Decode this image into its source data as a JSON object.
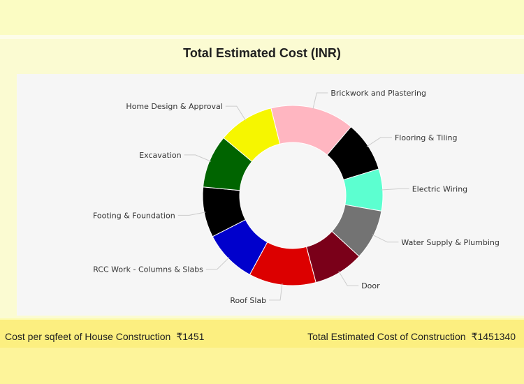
{
  "chart_data": {
    "type": "pie",
    "title": "Total Estimated Cost (INR)",
    "categories": [
      "Brickwork and Plastering",
      "Flooring & Tiling",
      "Electric Wiring",
      "Water Supply & Plumbing",
      "Door",
      "Roof Slab",
      "RCC Work - Columns & Slabs",
      "Footing & Foundation",
      "Excavation",
      "Home Design & Approval"
    ],
    "values": [
      15,
      9,
      7.5,
      9,
      9,
      12,
      9.5,
      9,
      9.5,
      10
    ],
    "colors": [
      "#ffb6c1",
      "#000000",
      "#5cffd0",
      "#737373",
      "#7a0019",
      "#dc0000",
      "#0000cc",
      "#000000",
      "#006400",
      "#f6f600"
    ]
  },
  "footer": {
    "cost_per_sqft_label": "Cost per sqfeet of House Construction",
    "cost_per_sqft_value": "₹1451",
    "total_cost_label": "Total Estimated Cost of Construction",
    "total_cost_value": "₹1451340"
  }
}
